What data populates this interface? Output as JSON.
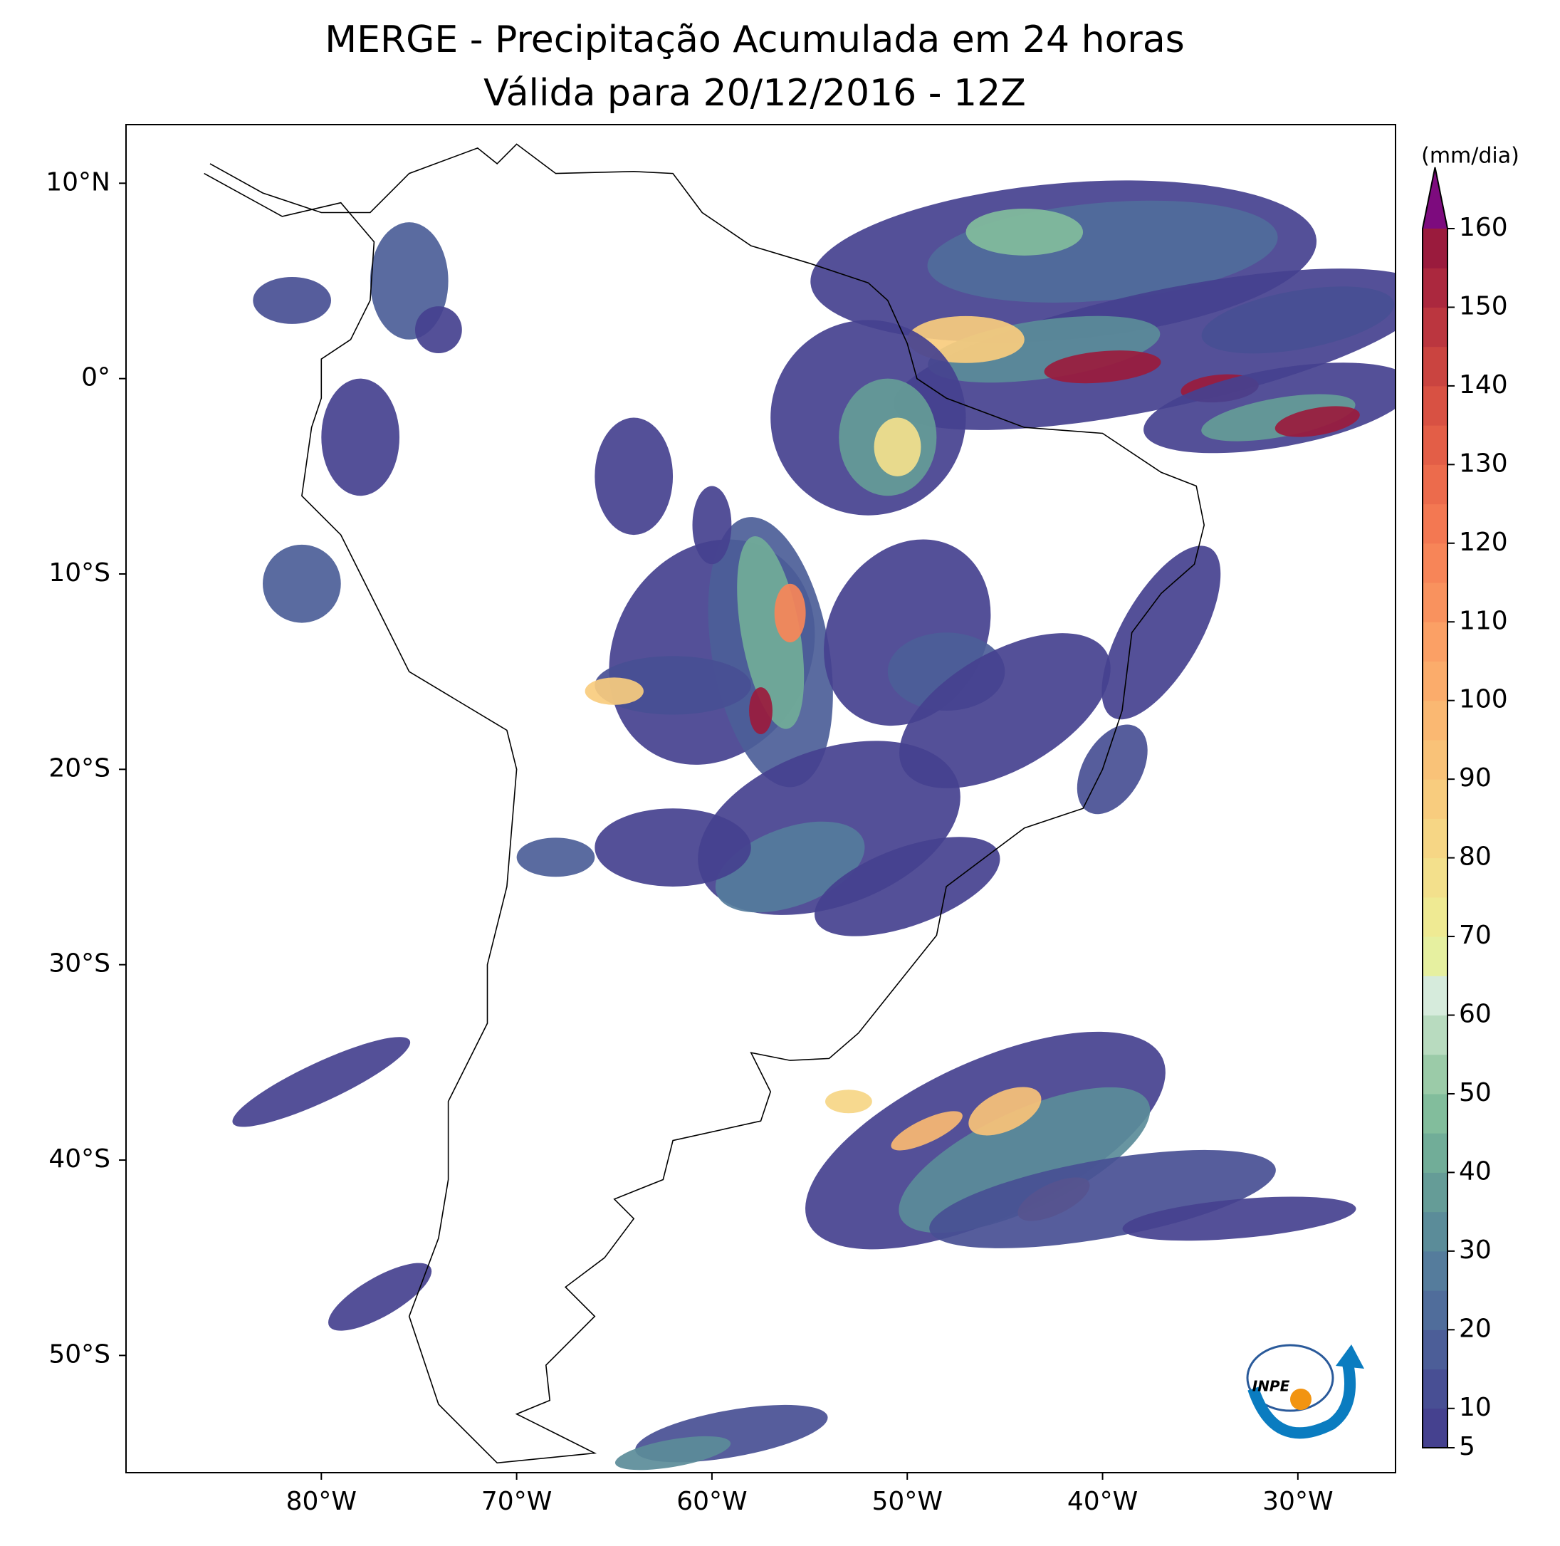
{
  "title": "MERGE - Precipitação Acumulada em 24 horas",
  "subtitle": "Válida para 20/12/2016 - 12Z",
  "lon_lim": [
    -90,
    -25
  ],
  "lat_lim": [
    -56,
    13
  ],
  "lon_ticks": [
    {
      "value": -80,
      "label": "80°W"
    },
    {
      "value": -70,
      "label": "70°W"
    },
    {
      "value": -60,
      "label": "60°W"
    },
    {
      "value": -50,
      "label": "50°W"
    },
    {
      "value": -40,
      "label": "40°W"
    },
    {
      "value": -30,
      "label": "30°W"
    }
  ],
  "lat_ticks": [
    {
      "value": 10,
      "label": "10°N"
    },
    {
      "value": 0,
      "label": "0°"
    },
    {
      "value": -10,
      "label": "10°S"
    },
    {
      "value": -20,
      "label": "20°S"
    },
    {
      "value": -30,
      "label": "30°S"
    },
    {
      "value": -40,
      "label": "40°S"
    },
    {
      "value": -50,
      "label": "50°S"
    }
  ],
  "colorbar": {
    "label": "(mm/dia)",
    "lim": [
      5,
      160
    ],
    "ticks": [
      5,
      10,
      20,
      30,
      40,
      50,
      60,
      70,
      80,
      90,
      100,
      110,
      120,
      130,
      140,
      150,
      160
    ],
    "colors": [
      "#45418f",
      "#484f94",
      "#4c5e98",
      "#506d9b",
      "#557c9c",
      "#5b8c99",
      "#659c97",
      "#71ad98",
      "#82bd9c",
      "#9bcba8",
      "#b8dbbf",
      "#d6ebdc",
      "#e6f0a0",
      "#efea93",
      "#f3e08c",
      "#f6d685",
      "#f8cc7e",
      "#f9c278",
      "#fab872",
      "#fbac6b",
      "#fba065",
      "#f9925e",
      "#f78558",
      "#f37852",
      "#ec6b4c",
      "#e35e47",
      "#d85143",
      "#ca4440",
      "#bb363f",
      "#ab283e",
      "#9a1b3d"
    ],
    "over_color": "#7d0b7e"
  },
  "logo": "INPE"
}
